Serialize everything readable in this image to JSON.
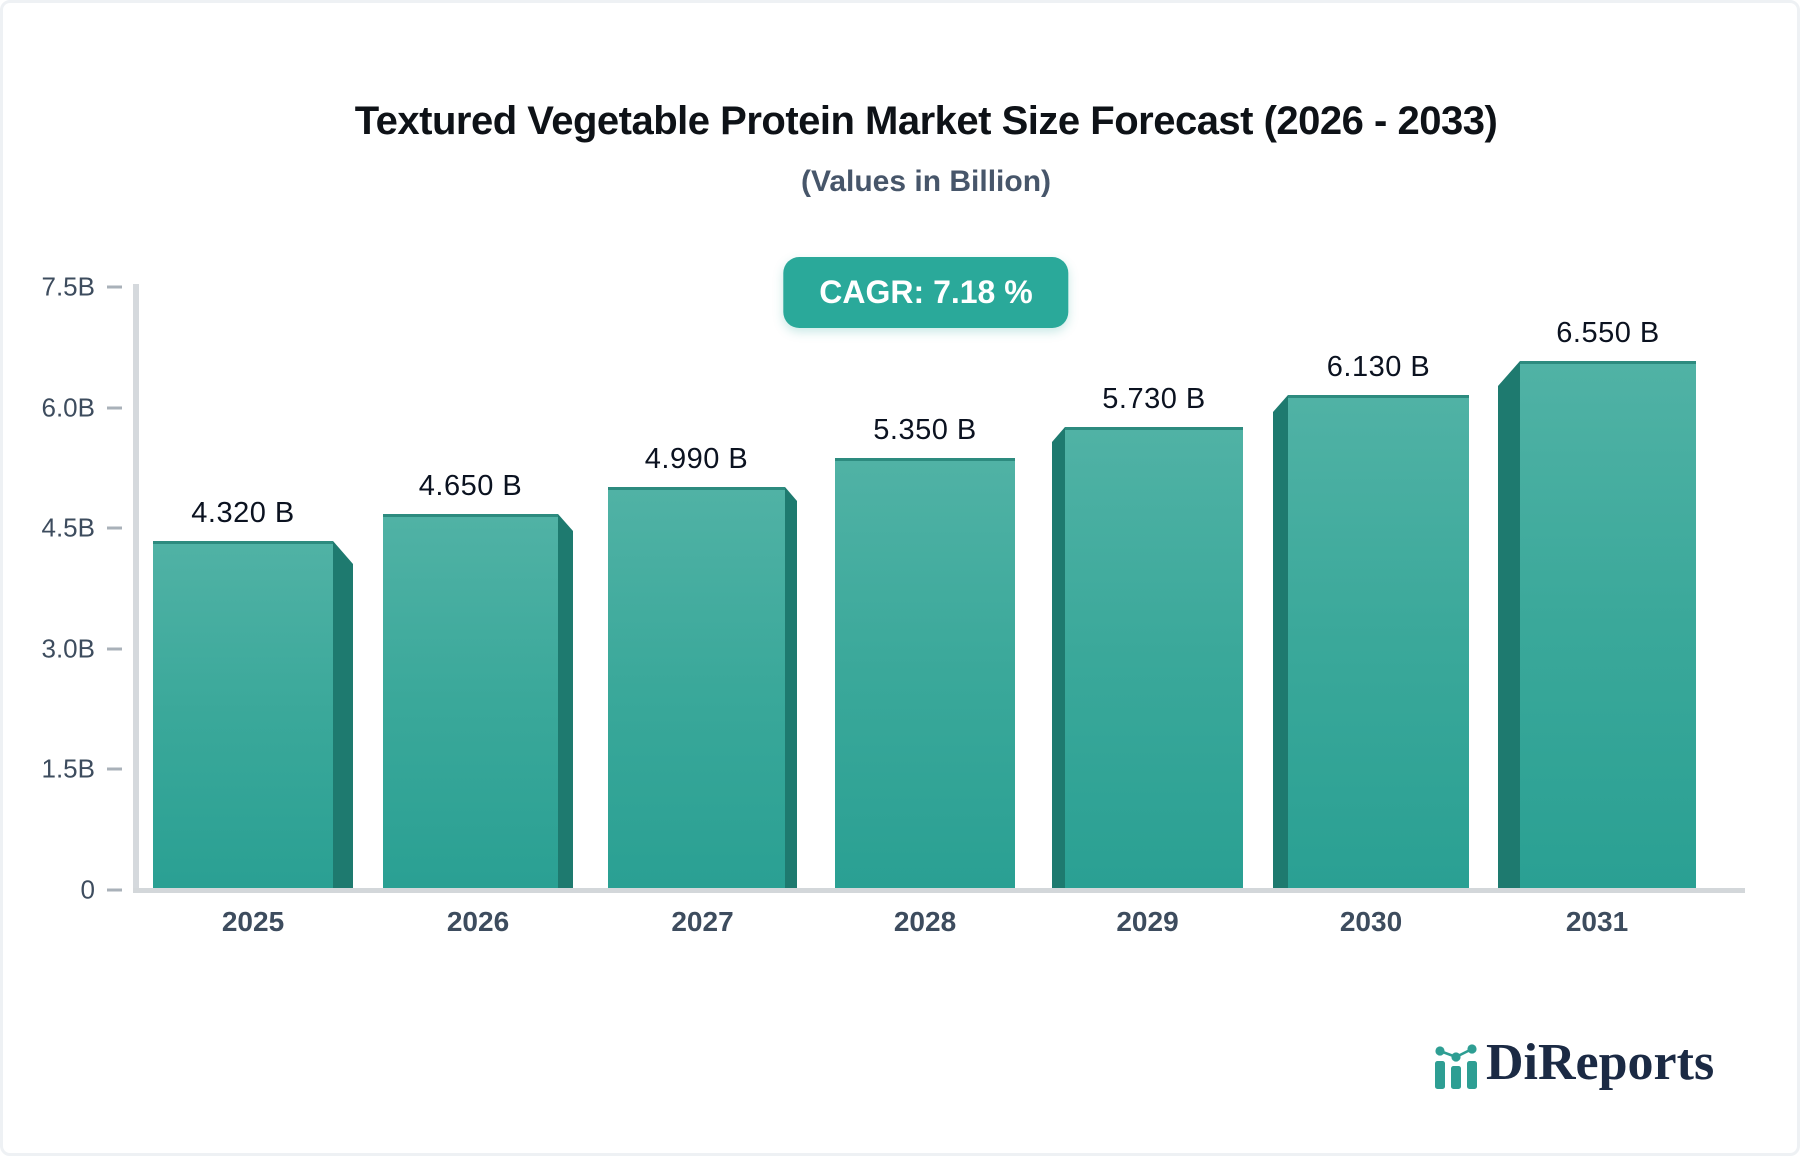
{
  "header": {
    "title": "Textured Vegetable Protein Market Size Forecast (2026 - 2033)",
    "subtitle": "(Values in Billion)"
  },
  "badge": {
    "label": "CAGR: 7.18 %"
  },
  "chart_data": {
    "type": "bar",
    "title": "Textured Vegetable Protein Market Size Forecast (2026 - 2033)",
    "subtitle": "(Values in Billion)",
    "cagr_label": "CAGR: 7.18 %",
    "categories": [
      "2025",
      "2026",
      "2027",
      "2028",
      "2029",
      "2030",
      "2031"
    ],
    "values": [
      4.32,
      4.65,
      4.99,
      5.35,
      5.73,
      6.13,
      6.55
    ],
    "value_labels": [
      "4.320 B",
      "4.650 B",
      "4.990 B",
      "5.350 B",
      "5.730 B",
      "6.130 B",
      "6.550 B"
    ],
    "xlabel": "",
    "ylabel": "",
    "ylim": [
      0,
      7.5
    ],
    "yticks": [
      {
        "value": 7.5,
        "label": "7.5B"
      },
      {
        "value": 6.0,
        "label": "6.0B"
      },
      {
        "value": 4.5,
        "label": "4.5B"
      },
      {
        "value": 3.0,
        "label": "3.0B"
      },
      {
        "value": 1.5,
        "label": "1.5B"
      },
      {
        "value": 0,
        "label": "0"
      }
    ],
    "grid": false,
    "legend": null,
    "bar_face_color": "#3aa89a",
    "bar_side_color": "#1e7a6f",
    "badge_color": "#2aa99a"
  },
  "logo": {
    "text": "DiReports"
  }
}
